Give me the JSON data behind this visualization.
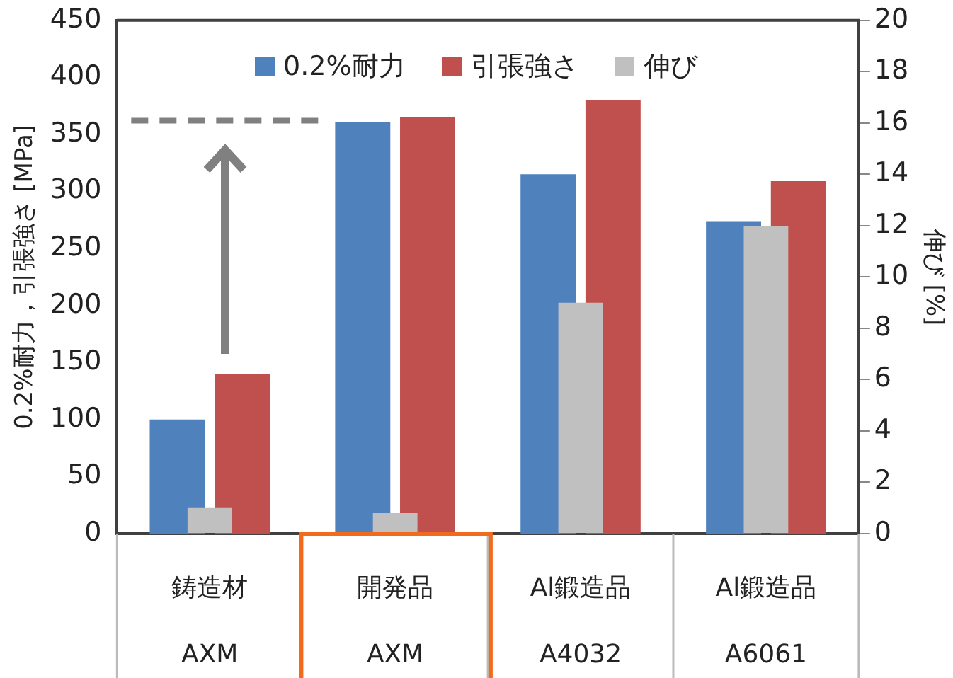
{
  "chart_data": {
    "type": "bar",
    "categories": [
      "鋳造材\nAXM",
      "開発品\nAXM",
      "Al鍛造品\nA4032",
      "Al鍛造品\nA6061"
    ],
    "series": [
      {
        "name": "0.2%耐力",
        "color": "#4f81bd",
        "values": [
          100,
          361,
          315,
          274
        ]
      },
      {
        "name": "引張強さ",
        "color": "#c0504d",
        "values": [
          140,
          365,
          380,
          309
        ]
      },
      {
        "name": "伸び",
        "color": "#c0c0c0",
        "values": [
          1.0,
          0.8,
          9,
          12
        ],
        "axis": "y2"
      }
    ],
    "ylabel": "0.2%耐力，引張強さ [MPa]",
    "y2label": "伸び [%]",
    "ylim": [
      0,
      450
    ],
    "yticks": [
      0,
      50,
      100,
      150,
      200,
      250,
      300,
      350,
      400,
      450
    ],
    "y2lim": [
      0,
      20
    ],
    "y2ticks": [
      0,
      2,
      4,
      6,
      8,
      10,
      12,
      14,
      16,
      18,
      20
    ],
    "ref_lines": [
      {
        "axis": "y",
        "value": 362,
        "color": "#808080",
        "line_style": "dashed"
      }
    ],
    "grid": false,
    "legend": "top"
  }
}
